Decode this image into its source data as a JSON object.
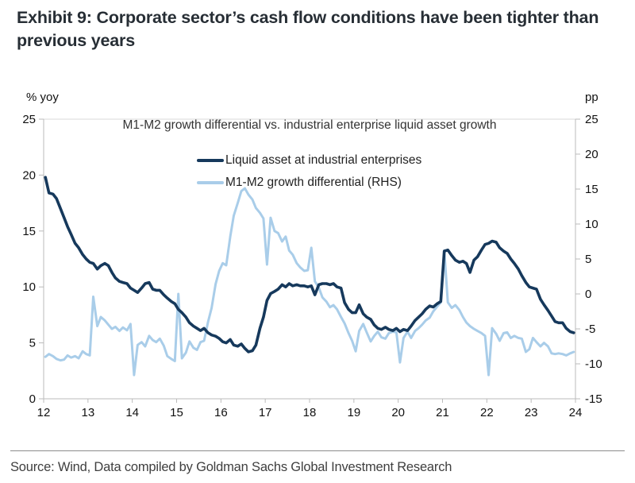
{
  "title": "Exhibit 9: Corporate sector’s cash flow conditions have been tighter than previous years",
  "source": "Source: Wind, Data compiled by Goldman Sachs Global Investment Research",
  "colors": {
    "navy": "#16395C",
    "light_blue": "#A9CDE9",
    "axis_line": "#bbbbbb",
    "gridline": "#d9d9d9",
    "tick_text": "#111111"
  },
  "chart_data": {
    "type": "line",
    "title": "M1-M2 growth differential vs. industrial enterprise liquid asset growth",
    "left_axis": {
      "label": "% yoy",
      "range": [
        0,
        25
      ],
      "ticks": [
        0,
        5,
        10,
        15,
        20,
        25
      ]
    },
    "right_axis": {
      "label": "pp",
      "range": [
        -15,
        25
      ],
      "ticks": [
        -15,
        -10,
        -5,
        0,
        5,
        10,
        15,
        20,
        25
      ]
    },
    "x_range": [
      12,
      24
    ],
    "x_ticks": [
      12,
      13,
      14,
      15,
      16,
      17,
      18,
      19,
      20,
      21,
      22,
      23,
      24
    ],
    "grid": "top-border-only",
    "legend_position": "top-center",
    "series": [
      {
        "name": "Liquid asset at industrial enterprises",
        "axis": "left",
        "color": "#16395C",
        "width": 3.6,
        "points": [
          [
            12.04,
            19.8
          ],
          [
            12.12,
            18.4
          ],
          [
            12.21,
            18.3
          ],
          [
            12.29,
            17.9
          ],
          [
            12.38,
            17.0
          ],
          [
            12.46,
            16.2
          ],
          [
            12.54,
            15.4
          ],
          [
            12.62,
            14.7
          ],
          [
            12.71,
            13.9
          ],
          [
            12.79,
            13.5
          ],
          [
            12.88,
            12.9
          ],
          [
            12.96,
            12.5
          ],
          [
            13.04,
            12.2
          ],
          [
            13.12,
            12.1
          ],
          [
            13.21,
            11.6
          ],
          [
            13.29,
            11.9
          ],
          [
            13.38,
            12.1
          ],
          [
            13.46,
            11.9
          ],
          [
            13.54,
            11.3
          ],
          [
            13.62,
            10.8
          ],
          [
            13.71,
            10.5
          ],
          [
            13.79,
            10.4
          ],
          [
            13.88,
            10.3
          ],
          [
            13.96,
            9.9
          ],
          [
            14.04,
            9.7
          ],
          [
            14.12,
            9.5
          ],
          [
            14.21,
            9.9
          ],
          [
            14.29,
            10.3
          ],
          [
            14.38,
            10.4
          ],
          [
            14.46,
            9.8
          ],
          [
            14.54,
            9.7
          ],
          [
            14.62,
            9.7
          ],
          [
            14.71,
            9.3
          ],
          [
            14.79,
            9.0
          ],
          [
            14.88,
            8.7
          ],
          [
            14.96,
            8.5
          ],
          [
            15.04,
            8.0
          ],
          [
            15.12,
            7.7
          ],
          [
            15.21,
            7.3
          ],
          [
            15.29,
            6.8
          ],
          [
            15.38,
            6.5
          ],
          [
            15.46,
            6.3
          ],
          [
            15.54,
            6.1
          ],
          [
            15.62,
            6.3
          ],
          [
            15.71,
            5.9
          ],
          [
            15.79,
            5.7
          ],
          [
            15.88,
            5.6
          ],
          [
            15.96,
            5.4
          ],
          [
            16.04,
            5.1
          ],
          [
            16.12,
            5.0
          ],
          [
            16.21,
            5.3
          ],
          [
            16.29,
            4.8
          ],
          [
            16.38,
            4.7
          ],
          [
            16.46,
            4.9
          ],
          [
            16.54,
            4.5
          ],
          [
            16.62,
            4.2
          ],
          [
            16.71,
            4.3
          ],
          [
            16.79,
            4.8
          ],
          [
            16.88,
            6.3
          ],
          [
            16.96,
            7.3
          ],
          [
            17.04,
            8.8
          ],
          [
            17.12,
            9.4
          ],
          [
            17.21,
            9.6
          ],
          [
            17.29,
            9.8
          ],
          [
            17.38,
            10.2
          ],
          [
            17.46,
            10.0
          ],
          [
            17.54,
            10.3
          ],
          [
            17.62,
            10.1
          ],
          [
            17.71,
            10.2
          ],
          [
            17.79,
            10.1
          ],
          [
            17.88,
            10.1
          ],
          [
            17.96,
            10.0
          ],
          [
            18.04,
            10.1
          ],
          [
            18.12,
            9.3
          ],
          [
            18.21,
            10.2
          ],
          [
            18.29,
            10.3
          ],
          [
            18.38,
            10.3
          ],
          [
            18.46,
            10.2
          ],
          [
            18.54,
            10.3
          ],
          [
            18.62,
            10.0
          ],
          [
            18.71,
            9.9
          ],
          [
            18.79,
            8.6
          ],
          [
            18.88,
            8.0
          ],
          [
            18.96,
            7.7
          ],
          [
            19.04,
            7.7
          ],
          [
            19.12,
            8.4
          ],
          [
            19.21,
            7.6
          ],
          [
            19.29,
            7.3
          ],
          [
            19.38,
            7.1
          ],
          [
            19.46,
            6.6
          ],
          [
            19.54,
            6.3
          ],
          [
            19.62,
            6.2
          ],
          [
            19.71,
            6.4
          ],
          [
            19.79,
            6.2
          ],
          [
            19.88,
            6.1
          ],
          [
            19.96,
            6.3
          ],
          [
            20.04,
            6.0
          ],
          [
            20.12,
            6.2
          ],
          [
            20.21,
            6.1
          ],
          [
            20.29,
            6.5
          ],
          [
            20.38,
            7.0
          ],
          [
            20.46,
            7.3
          ],
          [
            20.54,
            7.6
          ],
          [
            20.62,
            8.0
          ],
          [
            20.71,
            8.3
          ],
          [
            20.79,
            8.2
          ],
          [
            20.88,
            8.5
          ],
          [
            20.96,
            8.7
          ],
          [
            21.04,
            13.2
          ],
          [
            21.12,
            13.3
          ],
          [
            21.21,
            12.8
          ],
          [
            21.29,
            12.4
          ],
          [
            21.38,
            12.2
          ],
          [
            21.46,
            12.3
          ],
          [
            21.54,
            12.1
          ],
          [
            21.62,
            11.3
          ],
          [
            21.71,
            12.4
          ],
          [
            21.79,
            12.7
          ],
          [
            21.88,
            13.3
          ],
          [
            21.96,
            13.8
          ],
          [
            22.04,
            13.9
          ],
          [
            22.12,
            14.1
          ],
          [
            22.21,
            14.0
          ],
          [
            22.29,
            13.5
          ],
          [
            22.38,
            13.2
          ],
          [
            22.46,
            13.0
          ],
          [
            22.54,
            12.5
          ],
          [
            22.62,
            12.1
          ],
          [
            22.71,
            11.6
          ],
          [
            22.79,
            11.0
          ],
          [
            22.88,
            10.4
          ],
          [
            22.96,
            10.0
          ],
          [
            23.04,
            9.9
          ],
          [
            23.12,
            9.8
          ],
          [
            23.21,
            8.9
          ],
          [
            23.29,
            8.4
          ],
          [
            23.38,
            7.9
          ],
          [
            23.46,
            7.4
          ],
          [
            23.54,
            6.9
          ],
          [
            23.62,
            6.8
          ],
          [
            23.71,
            6.8
          ],
          [
            23.79,
            6.3
          ],
          [
            23.88,
            6.0
          ],
          [
            23.96,
            5.9
          ]
        ]
      },
      {
        "name": "M1-M2 growth differential (RHS)",
        "axis": "right",
        "color": "#A9CDE9",
        "width": 3.0,
        "points": [
          [
            12.04,
            -9.0
          ],
          [
            12.12,
            -8.6
          ],
          [
            12.21,
            -8.9
          ],
          [
            12.29,
            -9.3
          ],
          [
            12.38,
            -9.5
          ],
          [
            12.46,
            -9.4
          ],
          [
            12.54,
            -8.8
          ],
          [
            12.62,
            -9.1
          ],
          [
            12.71,
            -8.9
          ],
          [
            12.79,
            -9.2
          ],
          [
            12.88,
            -8.2
          ],
          [
            12.96,
            -8.6
          ],
          [
            13.04,
            -8.8
          ],
          [
            13.12,
            -0.4
          ],
          [
            13.21,
            -4.6
          ],
          [
            13.29,
            -3.3
          ],
          [
            13.38,
            -3.8
          ],
          [
            13.46,
            -4.4
          ],
          [
            13.54,
            -5.0
          ],
          [
            13.62,
            -4.7
          ],
          [
            13.71,
            -5.3
          ],
          [
            13.79,
            -4.8
          ],
          [
            13.88,
            -5.2
          ],
          [
            13.96,
            -4.3
          ],
          [
            14.04,
            -11.6
          ],
          [
            14.12,
            -7.3
          ],
          [
            14.21,
            -6.9
          ],
          [
            14.29,
            -7.5
          ],
          [
            14.38,
            -6.0
          ],
          [
            14.46,
            -6.6
          ],
          [
            14.54,
            -6.9
          ],
          [
            14.62,
            -6.4
          ],
          [
            14.71,
            -7.4
          ],
          [
            14.79,
            -8.9
          ],
          [
            14.88,
            -9.3
          ],
          [
            14.96,
            -9.6
          ],
          [
            15.04,
            0.0
          ],
          [
            15.12,
            -9.2
          ],
          [
            15.21,
            -8.4
          ],
          [
            15.29,
            -6.8
          ],
          [
            15.38,
            -7.7
          ],
          [
            15.46,
            -8.0
          ],
          [
            15.54,
            -6.9
          ],
          [
            15.62,
            -6.7
          ],
          [
            15.71,
            -4.0
          ],
          [
            15.79,
            -2.0
          ],
          [
            15.88,
            1.4
          ],
          [
            15.96,
            3.3
          ],
          [
            16.04,
            4.4
          ],
          [
            16.12,
            4.1
          ],
          [
            16.21,
            8.2
          ],
          [
            16.29,
            11.2
          ],
          [
            16.38,
            13.0
          ],
          [
            16.46,
            14.7
          ],
          [
            16.54,
            15.1
          ],
          [
            16.62,
            14.2
          ],
          [
            16.71,
            13.5
          ],
          [
            16.79,
            12.3
          ],
          [
            16.88,
            11.6
          ],
          [
            16.96,
            10.8
          ],
          [
            17.04,
            4.2
          ],
          [
            17.12,
            10.9
          ],
          [
            17.21,
            9.0
          ],
          [
            17.29,
            8.7
          ],
          [
            17.38,
            7.5
          ],
          [
            17.46,
            8.2
          ],
          [
            17.54,
            6.2
          ],
          [
            17.62,
            5.6
          ],
          [
            17.71,
            4.4
          ],
          [
            17.79,
            3.8
          ],
          [
            17.88,
            3.3
          ],
          [
            17.96,
            3.4
          ],
          [
            18.04,
            6.6
          ],
          [
            18.12,
            1.8
          ],
          [
            18.21,
            0.9
          ],
          [
            18.29,
            -0.5
          ],
          [
            18.38,
            -1.1
          ],
          [
            18.46,
            -1.9
          ],
          [
            18.54,
            -1.6
          ],
          [
            18.62,
            -2.2
          ],
          [
            18.71,
            -3.3
          ],
          [
            18.79,
            -4.2
          ],
          [
            18.88,
            -5.6
          ],
          [
            18.96,
            -6.7
          ],
          [
            19.04,
            -8.2
          ],
          [
            19.12,
            -5.3
          ],
          [
            19.21,
            -4.3
          ],
          [
            19.29,
            -5.5
          ],
          [
            19.38,
            -6.8
          ],
          [
            19.46,
            -6.0
          ],
          [
            19.54,
            -5.4
          ],
          [
            19.62,
            -6.2
          ],
          [
            19.71,
            -6.4
          ],
          [
            19.79,
            -5.6
          ],
          [
            19.88,
            -5.4
          ],
          [
            19.96,
            -5.5
          ],
          [
            20.04,
            -9.8
          ],
          [
            20.12,
            -6.3
          ],
          [
            20.21,
            -5.4
          ],
          [
            20.29,
            -6.3
          ],
          [
            20.38,
            -5.3
          ],
          [
            20.46,
            -4.9
          ],
          [
            20.54,
            -4.4
          ],
          [
            20.62,
            -3.8
          ],
          [
            20.71,
            -3.4
          ],
          [
            20.79,
            -2.5
          ],
          [
            20.88,
            -1.8
          ],
          [
            20.96,
            -1.2
          ],
          [
            21.04,
            6.2
          ],
          [
            21.12,
            -1.2
          ],
          [
            21.21,
            -2.0
          ],
          [
            21.29,
            -1.6
          ],
          [
            21.38,
            -2.3
          ],
          [
            21.46,
            -3.3
          ],
          [
            21.54,
            -4.1
          ],
          [
            21.62,
            -4.6
          ],
          [
            21.71,
            -5.0
          ],
          [
            21.79,
            -5.3
          ],
          [
            21.88,
            -5.6
          ],
          [
            21.96,
            -6.0
          ],
          [
            22.04,
            -11.6
          ],
          [
            22.12,
            -4.9
          ],
          [
            22.21,
            -5.7
          ],
          [
            22.29,
            -6.7
          ],
          [
            22.38,
            -5.6
          ],
          [
            22.46,
            -5.5
          ],
          [
            22.54,
            -6.3
          ],
          [
            22.62,
            -6.0
          ],
          [
            22.71,
            -6.3
          ],
          [
            22.79,
            -6.4
          ],
          [
            22.88,
            -8.3
          ],
          [
            22.96,
            -7.9
          ],
          [
            23.04,
            -6.3
          ],
          [
            23.12,
            -6.9
          ],
          [
            23.21,
            -7.5
          ],
          [
            23.29,
            -7.0
          ],
          [
            23.38,
            -7.5
          ],
          [
            23.46,
            -8.5
          ],
          [
            23.54,
            -8.6
          ],
          [
            23.62,
            -8.5
          ],
          [
            23.71,
            -8.6
          ],
          [
            23.79,
            -8.8
          ],
          [
            23.88,
            -8.5
          ],
          [
            23.96,
            -8.3
          ]
        ]
      }
    ]
  }
}
